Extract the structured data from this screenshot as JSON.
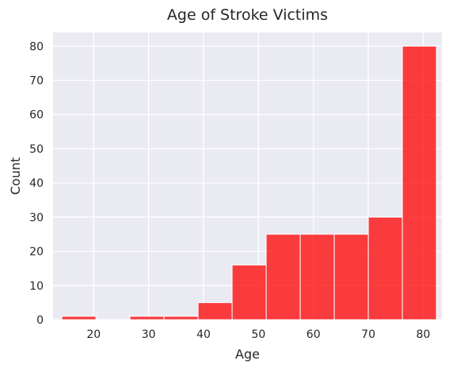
{
  "chart_data": {
    "type": "bar",
    "title": "Age of Stroke Victims",
    "xlabel": "Age",
    "ylabel": "Count",
    "xlim": [
      12.6,
      83.4
    ],
    "ylim": [
      0,
      84
    ],
    "x_ticks": [
      20,
      30,
      40,
      50,
      60,
      70,
      80
    ],
    "y_ticks": [
      0,
      10,
      20,
      30,
      40,
      50,
      60,
      70,
      80
    ],
    "grid": true,
    "bin_edges": [
      14.2,
      20.4,
      26.6,
      32.8,
      39.0,
      45.2,
      51.4,
      57.6,
      63.8,
      70.0,
      76.2,
      82.4
    ],
    "values": [
      1,
      0,
      1,
      1,
      5,
      16,
      25,
      25,
      25,
      30,
      80
    ],
    "colors": {
      "bar_fill": "#ff0000",
      "bar_opacity": 0.75,
      "bar_edge": "#ffffff",
      "plot_background": "#eaeaf2",
      "grid": "#ffffff",
      "text": "#262626"
    }
  }
}
